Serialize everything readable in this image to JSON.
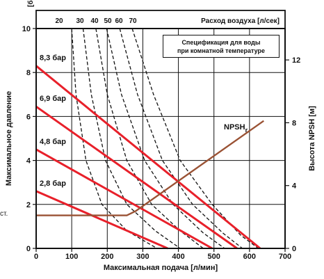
{
  "chart_data": {
    "type": "line",
    "x_axis": {
      "label": "Максимальная подача [л/мин]",
      "range": [
        0,
        700
      ],
      "ticks": [
        "0",
        "100",
        "200",
        "300",
        "400",
        "500",
        "600",
        "700"
      ]
    },
    "y_left": {
      "label": "Максимальное давление",
      "unit": "[бар]",
      "range": [
        0,
        10
      ],
      "ticks": [
        "0",
        "2",
        "4",
        "6",
        "8",
        "10"
      ]
    },
    "y_right": {
      "label": "Высота NPSH [м]",
      "range": [
        0,
        14
      ],
      "ticks": [
        "0",
        "4",
        "8",
        "12"
      ]
    },
    "top_axis": {
      "label": "Расход воздуха [л/сек]",
      "ticks": [
        "20",
        "30",
        "40",
        "50",
        "60",
        "70"
      ]
    },
    "note_lines": [
      "Спецификация для воды",
      "при комнатной температуре"
    ],
    "pressure_curves": [
      {
        "label": "8,3 бар",
        "points": [
          [
            0,
            8.3
          ],
          [
            630,
            0
          ]
        ]
      },
      {
        "label": "6,9 бар",
        "points": [
          [
            0,
            6.45
          ],
          [
            565,
            0
          ]
        ]
      },
      {
        "label": "4,8 бар",
        "points": [
          [
            0,
            4.5
          ],
          [
            495,
            0
          ]
        ]
      },
      {
        "label": "2,8 бар",
        "points": [
          [
            0,
            2.6
          ],
          [
            370,
            0
          ]
        ]
      }
    ],
    "npsh_curve": {
      "label_main": "NPSH",
      "label_sub": "r",
      "points": [
        [
          0,
          1.5
        ],
        [
          255,
          1.5
        ],
        [
          280,
          1.7
        ],
        [
          640,
          5.8
        ]
      ]
    },
    "air_flow_curves": [
      {
        "points": [
          [
            100,
            10
          ],
          [
            112,
            7
          ],
          [
            140,
            4
          ],
          [
            185,
            2
          ],
          [
            255,
            0.8
          ],
          [
            340,
            0
          ]
        ]
      },
      {
        "points": [
          [
            132,
            10
          ],
          [
            155,
            7
          ],
          [
            195,
            4
          ],
          [
            255,
            2
          ],
          [
            335,
            0.8
          ],
          [
            405,
            0
          ]
        ]
      },
      {
        "points": [
          [
            168,
            10
          ],
          [
            200,
            7
          ],
          [
            255,
            4
          ],
          [
            325,
            2
          ],
          [
            405,
            0.8
          ],
          [
            470,
            0
          ]
        ]
      },
      {
        "points": [
          [
            198,
            10
          ],
          [
            240,
            7
          ],
          [
            305,
            4
          ],
          [
            385,
            2
          ],
          [
            470,
            0.7
          ],
          [
            530,
            0
          ]
        ]
      },
      {
        "points": [
          [
            235,
            10
          ],
          [
            285,
            7
          ],
          [
            355,
            4
          ],
          [
            440,
            2
          ],
          [
            525,
            0.7
          ],
          [
            580,
            0
          ]
        ]
      },
      {
        "points": [
          [
            270,
            10
          ],
          [
            330,
            7
          ],
          [
            405,
            4
          ],
          [
            495,
            2
          ],
          [
            575,
            0.6
          ],
          [
            625,
            0
          ]
        ]
      }
    ],
    "colors": {
      "pressure": "#e8202a",
      "npsh": "#9a5234",
      "air": "#111111",
      "grid": "#111111"
    },
    "grid": true
  },
  "stray_text": "ст."
}
